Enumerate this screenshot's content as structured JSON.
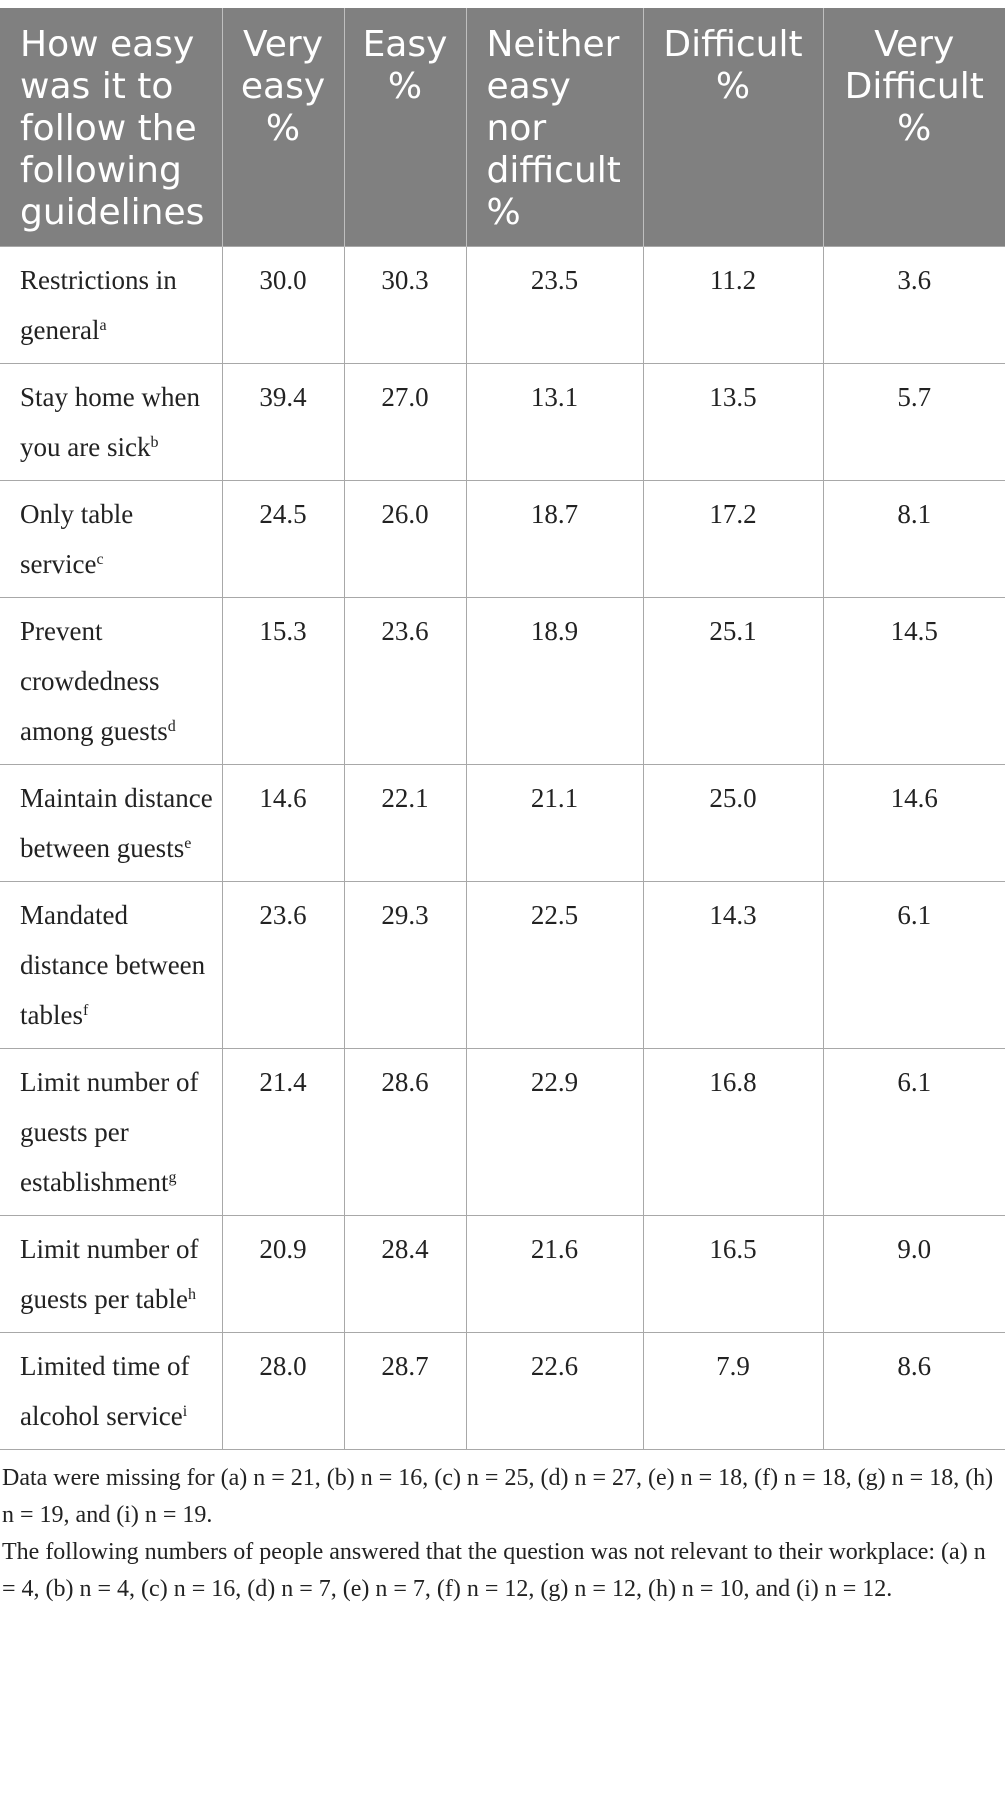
{
  "table": {
    "headers": [
      "How easy was it to follow the following guidelines",
      "Very easy %",
      "Easy %",
      "Neither easy nor difficult %",
      "Difficult %",
      "Very Difficult %"
    ],
    "rows": [
      {
        "label": "Restrictions in general",
        "note": "a",
        "values": [
          "30.0",
          "30.3",
          "23.5",
          "11.2",
          "3.6"
        ]
      },
      {
        "label": "Stay home when you are sick",
        "note": "b",
        "values": [
          "39.4",
          "27.0",
          "13.1",
          "13.5",
          "5.7"
        ]
      },
      {
        "label": "Only table service",
        "note": "c",
        "values": [
          "24.5",
          "26.0",
          "18.7",
          "17.2",
          "8.1"
        ]
      },
      {
        "label": "Prevent crowdedness among guests",
        "note": "d",
        "values": [
          "15.3",
          "23.6",
          "18.9",
          "25.1",
          "14.5"
        ]
      },
      {
        "label": "Maintain distance between guests",
        "note": "e",
        "values": [
          "14.6",
          "22.1",
          "21.1",
          "25.0",
          "14.6"
        ]
      },
      {
        "label": "Mandated distance between tables",
        "note": "f",
        "values": [
          "23.6",
          "29.3",
          "22.5",
          "14.3",
          "6.1"
        ]
      },
      {
        "label": "Limit number of guests per establishment",
        "note": "g",
        "values": [
          "21.4",
          "28.6",
          "22.9",
          "16.8",
          "6.1"
        ]
      },
      {
        "label": "Limit number of guests per table",
        "note": "h",
        "values": [
          "20.9",
          "28.4",
          "21.6",
          "16.5",
          "9.0"
        ]
      },
      {
        "label": "Limited time of alcohol service",
        "note": "i",
        "values": [
          "28.0",
          "28.7",
          "22.6",
          "7.9",
          "8.6"
        ]
      }
    ]
  },
  "footnotes": [
    "Data were missing for (a) n = 21, (b) n = 16, (c) n = 25, (d) n = 27, (e) n = 18, (f) n = 18, (g) n = 18, (h) n = 19, and (i) n = 19.",
    "The following numbers of people answered that the question was not relevant to their workplace: (a) n = 4, (b) n = 4, (c) n = 16, (d) n = 7, (e) n = 7, (f) n = 12, (g) n = 12, (h) n = 10, and (i) n = 12."
  ],
  "colors": {
    "header_bg": "#808080",
    "header_text": "#ffffff",
    "grid": "#a8a8a8"
  }
}
